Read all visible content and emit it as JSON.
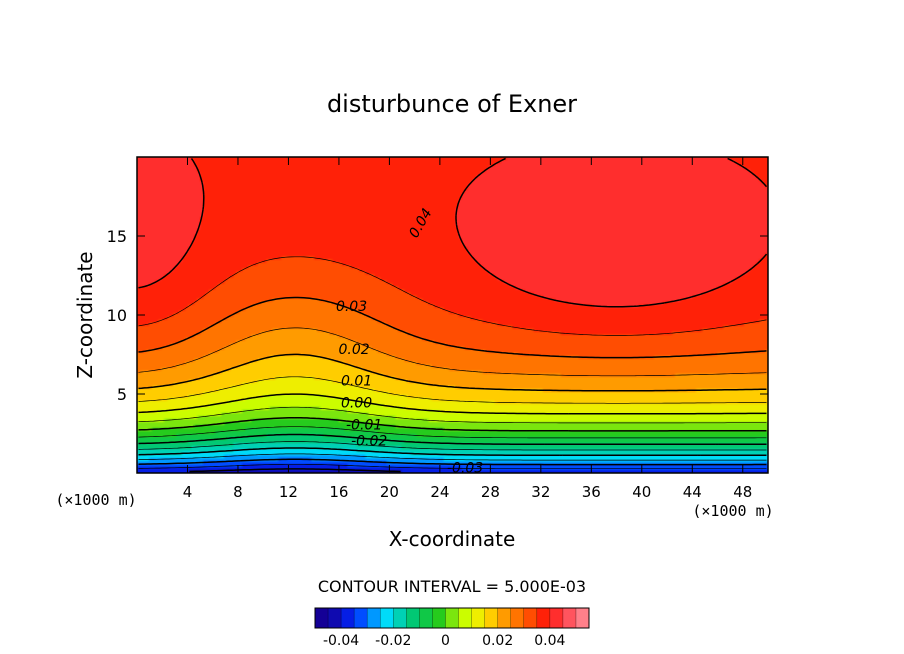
{
  "chart_data": {
    "type": "contour",
    "title": "disturbunce of Exner",
    "xlabel": "X-coordinate",
    "ylabel": "Z-coordinate",
    "x_unit": "(×1000 m)",
    "z_unit": "(×1000 m)",
    "xlim": [
      0,
      50
    ],
    "ylim": [
      0,
      20
    ],
    "x_ticks": [
      4,
      8,
      12,
      16,
      20,
      24,
      28,
      32,
      36,
      40,
      44,
      48
    ],
    "y_ticks": [
      5,
      10,
      15
    ],
    "contour_interval_text": "CONTOUR INTERVAL = 5.000E-03",
    "contour_interval": 0.005,
    "value_range": [
      -0.045,
      0.055
    ],
    "contour_labels": [
      {
        "value": 0.04,
        "text": "0.04",
        "x": 22.5,
        "z": 15.8
      },
      {
        "value": 0.03,
        "text": "0.03",
        "x": 17.0,
        "z": 10.5
      },
      {
        "value": 0.02,
        "text": "0.02",
        "x": 17.2,
        "z": 7.8
      },
      {
        "value": 0.01,
        "text": "0.01",
        "x": 17.4,
        "z": 5.8
      },
      {
        "value": 0.0,
        "text": "0.00",
        "x": 17.4,
        "z": 4.4
      },
      {
        "value": -0.01,
        "text": "-0.01",
        "x": 18.0,
        "z": 3.0
      },
      {
        "value": -0.02,
        "text": "-0.02",
        "x": 18.4,
        "z": 2.0
      },
      {
        "value": -0.03,
        "text": "-0.03",
        "x": 26.0,
        "z": 0.3
      }
    ],
    "colorbar": {
      "min": -0.05,
      "max": 0.055,
      "tick_values": [
        -0.04,
        -0.02,
        0,
        0.02,
        0.04
      ],
      "tick_labels": [
        "-0.04",
        "-0.02",
        "0",
        "0.02",
        "0.04"
      ]
    }
  }
}
